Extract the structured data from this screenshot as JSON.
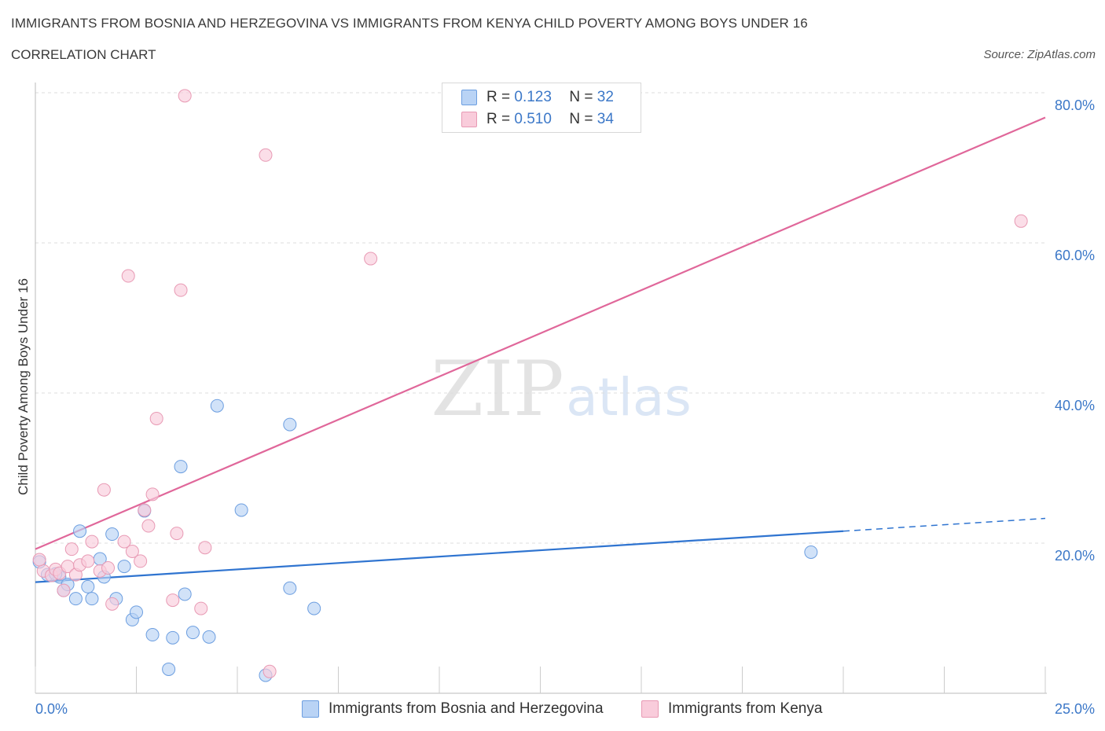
{
  "header": {
    "title": "IMMIGRANTS FROM BOSNIA AND HERZEGOVINA VS IMMIGRANTS FROM KENYA CHILD POVERTY AMONG BOYS UNDER 16",
    "subtitle": "CORRELATION CHART",
    "source": "Source: ZipAtlas.com"
  },
  "legend": {
    "rows": [
      {
        "r_label": "R =",
        "r_value": "0.123",
        "n_label": "N =",
        "n_value": "32"
      },
      {
        "r_label": "R =",
        "r_value": "0.510",
        "n_label": "N =",
        "n_value": "34"
      }
    ],
    "series_names": [
      "Immigrants from Bosnia and Herzegovina",
      "Immigrants from Kenya"
    ]
  },
  "watermark": {
    "zip": "ZIP",
    "atlas": "atlas"
  },
  "colors": {
    "blue_fill": "#b9d3f5",
    "blue_stroke": "#6c9ee0",
    "blue_line": "#2f74d0",
    "pink_fill": "#f9ccdb",
    "pink_stroke": "#e89ab4",
    "pink_line": "#e0679a",
    "tick_text": "#3c78c8",
    "grid": "#dddddd"
  },
  "chart_data": {
    "type": "scatter",
    "title": "IMMIGRANTS FROM BOSNIA AND HERZEGOVINA VS IMMIGRANTS FROM KENYA CHILD POVERTY AMONG BOYS UNDER 16",
    "xlabel": "",
    "ylabel": "Child Poverty Among Boys Under 16",
    "xlim": [
      0,
      25
    ],
    "ylim": [
      0,
      80
    ],
    "x_tick_labels": [
      "0.0%",
      "25.0%"
    ],
    "y_ticks": [
      20,
      40,
      60,
      80
    ],
    "y_tick_labels": [
      "20.0%",
      "40.0%",
      "60.0%",
      "80.0%"
    ],
    "series": [
      {
        "name": "Immigrants from Bosnia and Herzegovina",
        "color": "#6c9ee0",
        "points": [
          [
            0.1,
            17.5
          ],
          [
            0.3,
            15.8
          ],
          [
            0.6,
            15.5
          ],
          [
            0.7,
            13.7
          ],
          [
            0.8,
            14.5
          ],
          [
            1.0,
            12.6
          ],
          [
            1.1,
            21.6
          ],
          [
            1.3,
            14.2
          ],
          [
            1.4,
            12.6
          ],
          [
            1.6,
            17.9
          ],
          [
            1.7,
            15.5
          ],
          [
            1.9,
            21.2
          ],
          [
            2.0,
            12.6
          ],
          [
            2.2,
            16.9
          ],
          [
            2.4,
            9.8
          ],
          [
            2.5,
            10.8
          ],
          [
            2.7,
            24.3
          ],
          [
            2.9,
            7.8
          ],
          [
            3.3,
            3.2
          ],
          [
            3.4,
            7.4
          ],
          [
            3.6,
            30.2
          ],
          [
            3.7,
            13.2
          ],
          [
            3.9,
            8.1
          ],
          [
            4.3,
            7.5
          ],
          [
            4.5,
            38.3
          ],
          [
            5.1,
            24.4
          ],
          [
            5.7,
            2.4
          ],
          [
            6.3,
            35.8
          ],
          [
            6.3,
            14.0
          ],
          [
            6.9,
            11.3
          ],
          [
            19.2,
            18.8
          ],
          [
            0.5,
            15.9
          ]
        ]
      },
      {
        "name": "Immigrants from Kenya",
        "color": "#e89ab4",
        "points": [
          [
            0.2,
            16.3
          ],
          [
            0.4,
            15.7
          ],
          [
            0.5,
            16.5
          ],
          [
            0.6,
            16.0
          ],
          [
            0.7,
            13.7
          ],
          [
            0.8,
            16.9
          ],
          [
            0.9,
            19.2
          ],
          [
            1.0,
            15.8
          ],
          [
            1.1,
            17.1
          ],
          [
            1.3,
            17.6
          ],
          [
            1.4,
            20.2
          ],
          [
            1.6,
            16.3
          ],
          [
            1.7,
            27.1
          ],
          [
            1.8,
            16.7
          ],
          [
            1.9,
            11.9
          ],
          [
            2.2,
            20.2
          ],
          [
            2.3,
            55.6
          ],
          [
            2.4,
            18.9
          ],
          [
            2.6,
            17.6
          ],
          [
            2.7,
            24.4
          ],
          [
            2.8,
            22.3
          ],
          [
            2.9,
            26.5
          ],
          [
            3.0,
            36.6
          ],
          [
            3.4,
            12.4
          ],
          [
            3.5,
            21.3
          ],
          [
            3.6,
            53.7
          ],
          [
            3.7,
            79.6
          ],
          [
            4.1,
            11.3
          ],
          [
            4.2,
            19.4
          ],
          [
            5.7,
            71.7
          ],
          [
            5.8,
            2.9
          ],
          [
            8.3,
            57.9
          ],
          [
            24.4,
            62.9
          ],
          [
            0.1,
            17.8
          ]
        ]
      }
    ],
    "trend_lines": [
      {
        "series": "Immigrants from Bosnia and Herzegovina",
        "x_start": 0,
        "y_start": 14.8,
        "x_solid_end": 20,
        "x_end": 25,
        "y_end": 23.3,
        "dashed_extension": true
      },
      {
        "series": "Immigrants from Kenya",
        "x_start": 0,
        "y_start": 19.2,
        "x_end": 25,
        "y_end": 76.7,
        "dashed_extension": false
      }
    ],
    "legend_position": "top-center",
    "grid": true
  }
}
